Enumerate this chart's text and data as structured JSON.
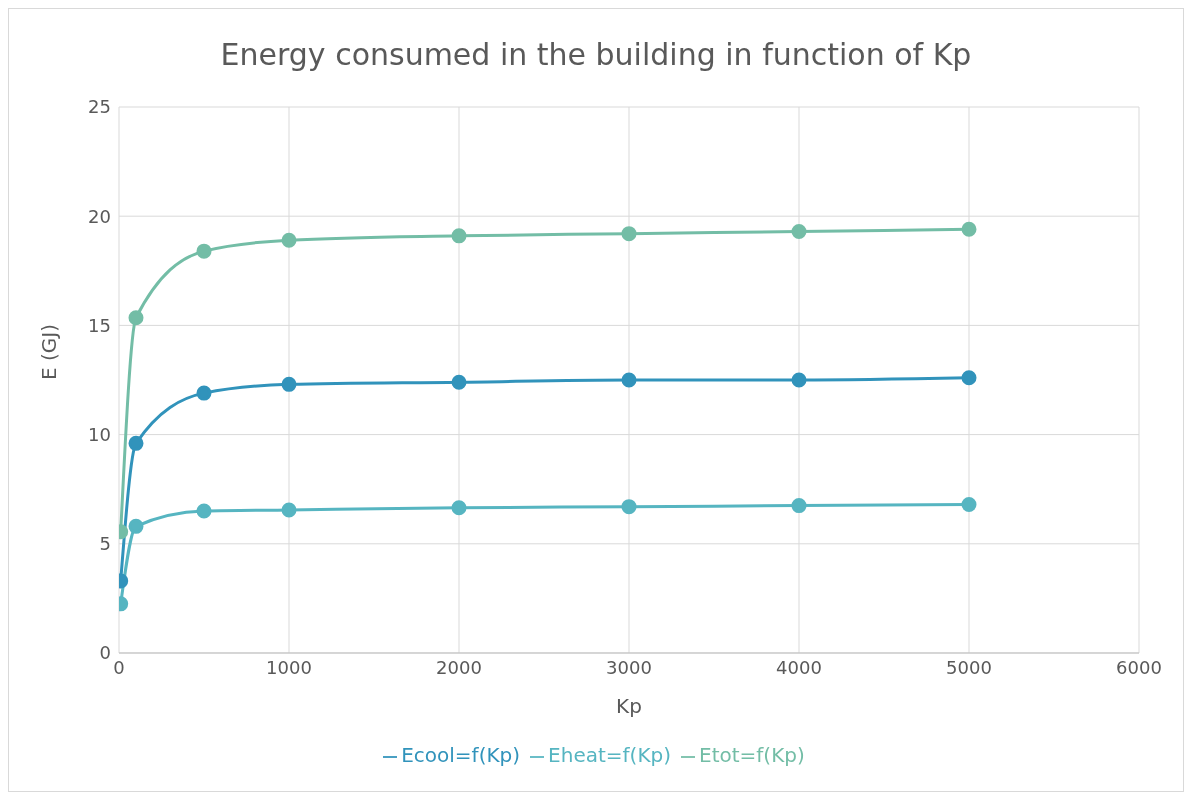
{
  "chart_data": {
    "type": "line",
    "title": "Energy consumed in the building in function of Kp",
    "xlabel": "Kp",
    "ylabel": "E (GJ)",
    "x": [
      10,
      100,
      500,
      1000,
      2000,
      3000,
      4000,
      5000
    ],
    "series": [
      {
        "name": "Ecool=f(Kp)",
        "color": "#3193bb",
        "values": [
          3.3,
          9.6,
          11.9,
          12.3,
          12.4,
          12.5,
          12.5,
          12.6
        ]
      },
      {
        "name": "Eheat=f(Kp)",
        "color": "#56b5c1",
        "values": [
          2.25,
          5.8,
          6.5,
          6.55,
          6.65,
          6.7,
          6.75,
          6.8
        ]
      },
      {
        "name": "Etot=f(Kp)",
        "color": "#73bda6",
        "values": [
          5.55,
          15.35,
          18.4,
          18.9,
          19.1,
          19.2,
          19.3,
          19.4
        ]
      }
    ],
    "xlim": [
      0,
      6000
    ],
    "xticks": [
      0,
      1000,
      2000,
      3000,
      4000,
      5000,
      6000
    ],
    "ylim": [
      0,
      25
    ],
    "yticks": [
      0,
      5,
      10,
      15,
      20,
      25
    ],
    "grid": true,
    "legend": "bottom",
    "marker": "circle",
    "line_style": "solid"
  }
}
